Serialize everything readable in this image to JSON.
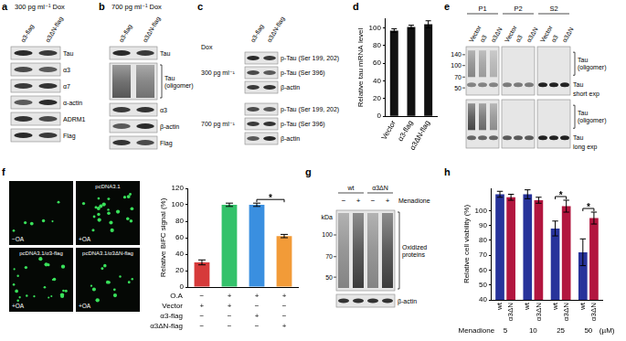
{
  "blots": {
    "a": {
      "panel": "a",
      "title": "300 pg ml⁻¹ Dox",
      "lanes": [
        "α3-flag",
        "α3ΔN-flag"
      ],
      "rows": [
        "Tau",
        "α3",
        "α7",
        "α-actin",
        "ADRM1",
        "Flag"
      ]
    },
    "b": {
      "panel": "b",
      "title": "700 pg ml⁻¹ Dox",
      "lanes": [
        "α3-flag",
        "α3ΔN-flag"
      ],
      "rows": [
        "Tau",
        {
          "label": "Tau (oligomer)",
          "bracket": true
        },
        "α3",
        "β-actin",
        "Flag"
      ]
    },
    "c": {
      "panel": "c",
      "treatment": "Dox",
      "lanes": [
        "α3-flag",
        "α3ΔN-flag"
      ],
      "groups": [
        {
          "label": "300 pg ml⁻¹",
          "rows": [
            "p-Tau (Ser 199, 202)",
            "p-Tau (Ser 396)",
            "β-actin"
          ]
        },
        {
          "label": "700 pg ml⁻¹",
          "rows": [
            "p-Tau (Ser 199, 202)",
            "p-Tau (Ser 396)",
            "β-actin"
          ]
        }
      ]
    },
    "e": {
      "panel": "e",
      "fractions": [
        {
          "label": "P1",
          "lanes": [
            "Vector",
            "α3",
            "α3ΔN"
          ]
        },
        {
          "label": "P2",
          "lanes": [
            "Vector",
            "α3",
            "α3ΔN"
          ]
        },
        {
          "label": "S2",
          "lanes": [
            "Vector",
            "α3",
            "α3ΔN"
          ]
        }
      ],
      "markers": [
        140,
        100,
        70,
        50
      ],
      "exposures": [
        {
          "label": "short exp",
          "rows": [
            {
              "label": "Tau (oligomer)",
              "bracket": true
            },
            "Tau"
          ]
        },
        {
          "label": "long exp",
          "rows": [
            {
              "label": "Tau (oligomer)",
              "bracket": true
            },
            "Tau"
          ]
        }
      ]
    },
    "g": {
      "panel": "g",
      "markers_label": "kDa",
      "markers": [
        100,
        70,
        50
      ],
      "treatment": "Menadione",
      "groups": [
        {
          "label": "wt",
          "lanes": [
            "−",
            "+"
          ]
        },
        {
          "label": "α3ΔN",
          "lanes": [
            "−",
            "+"
          ]
        }
      ],
      "rows": [
        {
          "label": "Oxidized proteins",
          "bracket": true
        },
        "β-actin"
      ]
    }
  },
  "micrographs": {
    "panel": "f",
    "images": [
      {
        "condition": "−OA"
      },
      {
        "label": "pcDNA3.1",
        "condition": "+OA"
      },
      {
        "label": "pcDNA3.1/α3-flag",
        "condition": "+OA"
      },
      {
        "label": "pcDNA3.1/α3ΔN-flag",
        "condition": "+OA"
      }
    ]
  },
  "chart_data": [
    {
      "panel": "d",
      "type": "bar",
      "categories": [
        "Vector",
        "α3-flag",
        "α3ΔN-flag"
      ],
      "values": [
        97,
        101,
        104
      ],
      "errors": [
        2,
        2,
        4
      ],
      "color": "#111111",
      "y_label": "Relative tau mRNA level",
      "ylim": [
        0,
        110
      ],
      "yticks": [
        0,
        20,
        40,
        60,
        80,
        100
      ],
      "grid": false
    },
    {
      "panel": "f",
      "type": "bar",
      "conditions": [
        {
          "name": "O.A",
          "marks": [
            "−",
            "+",
            "+",
            "+"
          ]
        },
        {
          "name": "Vector",
          "marks": [
            "+",
            "+",
            "−",
            "−"
          ]
        },
        {
          "name": "α3-flag",
          "marks": [
            "−",
            "−",
            "+",
            "−"
          ]
        },
        {
          "name": "α3ΔN-flag",
          "marks": [
            "−",
            "−",
            "−",
            "+"
          ]
        }
      ],
      "values": [
        30,
        100,
        100,
        62
      ],
      "errors": [
        3,
        2,
        2,
        2
      ],
      "colors": [
        "#d63a3a",
        "#33c26a",
        "#3a8fe0",
        "#f29b38"
      ],
      "y_label": "Relative BiFC signal (%)",
      "ylim": [
        0,
        120
      ],
      "yticks": [
        0,
        20,
        40,
        60,
        80,
        100,
        120
      ],
      "grid": false,
      "significance": [
        {
          "between": [
            2,
            3
          ],
          "label": "*"
        }
      ]
    },
    {
      "panel": "h",
      "type": "bar",
      "categories": [
        "5",
        "10",
        "25",
        "50"
      ],
      "x_label": "Menadione",
      "x_unit": "(µM)",
      "series": [
        {
          "name": "wt",
          "color": "#27339a",
          "values": [
            111,
            111,
            88,
            72
          ],
          "errors": [
            2,
            3,
            5,
            9
          ]
        },
        {
          "name": "α3ΔN",
          "color": "#b2163f",
          "values": [
            109,
            107,
            103,
            95
          ],
          "errors": [
            2,
            2,
            4,
            4
          ]
        }
      ],
      "y_label": "Relative cell viability (%)",
      "ylim": [
        40,
        115
      ],
      "yticks": [
        40,
        50,
        60,
        70,
        80,
        90,
        100
      ],
      "grid": false,
      "significance": [
        {
          "category": "25",
          "label": "*"
        },
        {
          "category": "50",
          "label": "*"
        }
      ]
    }
  ]
}
